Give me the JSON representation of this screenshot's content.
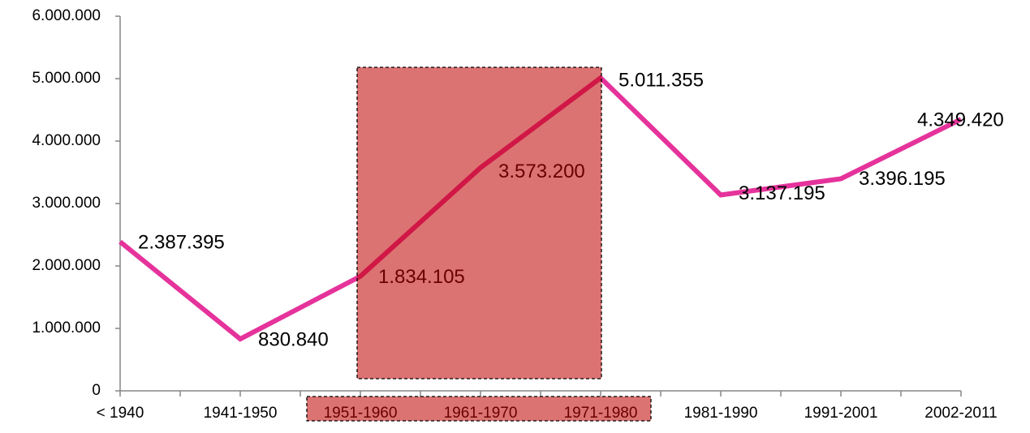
{
  "chart_data": {
    "type": "line",
    "categories": [
      "< 1940",
      "1941-1950",
      "1951-1960",
      "1961-1970",
      "1971-1980",
      "1981-1990",
      "1991-2001",
      "2002-2011"
    ],
    "series": [
      {
        "color": "#e5339b",
        "values": [
          2387395,
          830840,
          1834105,
          3573200,
          5011355,
          3137195,
          3396195,
          4349420
        ],
        "value_labels": [
          "2.387.395",
          "830.840",
          "1.834.105",
          "3.573.200",
          "5.011.355",
          "3.137.195",
          "3.396.195",
          "4.349.420"
        ]
      }
    ],
    "ylim": [
      0,
      6000000
    ],
    "yticks": [
      0,
      {
        "value": 1000000,
        "label": "1.000.000"
      },
      {
        "value": 2000000,
        "label": "2.000.000"
      },
      {
        "value": 3000000,
        "label": "3.000.000"
      },
      {
        "value": 4000000,
        "label": "4.000.000"
      },
      {
        "value": 5000000,
        "label": "5.000.000"
      },
      {
        "value": 6000000,
        "label": "6.000.000"
      }
    ]
  }
}
